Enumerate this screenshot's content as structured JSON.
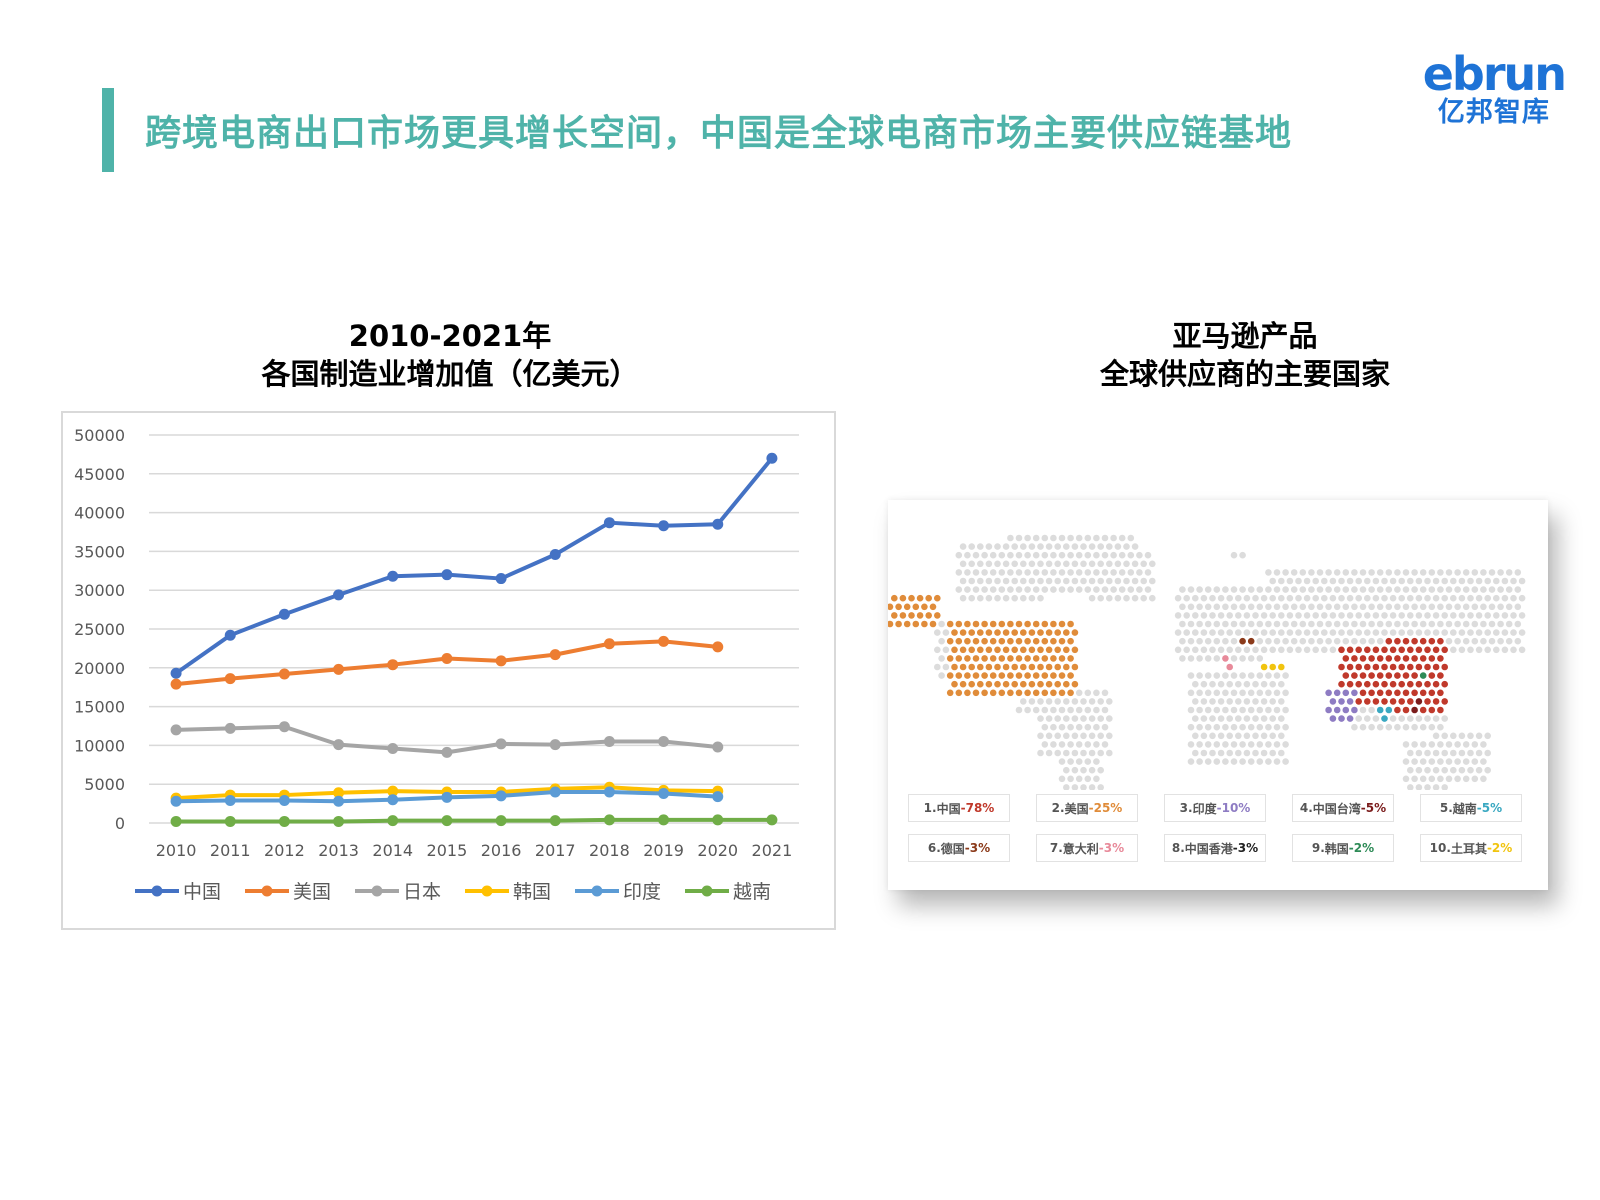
{
  "header": {
    "title": "跨境电商出口市场更具增长空间，中国是全球电商市场主要供应链基地",
    "logo_word": "ebrun",
    "logo_sub": "亿邦智库",
    "accent_color": "#4fb3a9",
    "logo_color": "#1e73d6"
  },
  "chart_section": {
    "title_line1": "2010-2021年",
    "title_line2": "各国制造业增加值（亿美元）"
  },
  "chart_data": {
    "type": "line",
    "categories": [
      "2010",
      "2011",
      "2012",
      "2013",
      "2014",
      "2015",
      "2016",
      "2017",
      "2018",
      "2019",
      "2020",
      "2021"
    ],
    "ylim": [
      0,
      50000
    ],
    "yticks": [
      0,
      5000,
      10000,
      15000,
      20000,
      25000,
      30000,
      35000,
      40000,
      45000,
      50000
    ],
    "grid": true,
    "legend_position": "bottom",
    "series": [
      {
        "name": "中国",
        "color": "#4472c4",
        "values": [
          19300,
          24200,
          26900,
          29400,
          31800,
          32000,
          31500,
          34600,
          38700,
          38300,
          38500,
          47000
        ]
      },
      {
        "name": "美国",
        "color": "#ed7d31",
        "values": [
          17900,
          18600,
          19200,
          19800,
          20400,
          21200,
          20900,
          21700,
          23100,
          23400,
          22700,
          null
        ]
      },
      {
        "name": "日本",
        "color": "#a5a5a5",
        "values": [
          12000,
          12200,
          12400,
          10100,
          9600,
          9100,
          10200,
          10100,
          10500,
          10500,
          9800,
          null
        ]
      },
      {
        "name": "韩国",
        "color": "#ffc000",
        "values": [
          3200,
          3600,
          3600,
          3900,
          4100,
          4000,
          4000,
          4400,
          4600,
          4200,
          4100,
          null
        ]
      },
      {
        "name": "印度",
        "color": "#5b9bd5",
        "values": [
          2800,
          2900,
          2900,
          2800,
          3000,
          3300,
          3500,
          4000,
          4000,
          3800,
          3400,
          null
        ]
      },
      {
        "name": "越南",
        "color": "#70ad47",
        "values": [
          200,
          200,
          200,
          200,
          300,
          300,
          300,
          300,
          400,
          400,
          400,
          400
        ]
      }
    ]
  },
  "map_section": {
    "title_line1": "亚马逊产品",
    "title_line2": "全球供应商的主要国家",
    "legend": [
      {
        "rank": "1.",
        "country": "中国",
        "pct": "-78%",
        "color": "#c0392b"
      },
      {
        "rank": "2.",
        "country": "美国",
        "pct": "-25%",
        "color": "#e08c3a"
      },
      {
        "rank": "3.",
        "country": "印度",
        "pct": "-10%",
        "color": "#8e7cc3"
      },
      {
        "rank": "4.",
        "country": "中国台湾",
        "pct": "-5%",
        "color": "#7b1c1c"
      },
      {
        "rank": "5.",
        "country": "越南",
        "pct": "-5%",
        "color": "#3aa8c1"
      },
      {
        "rank": "6.",
        "country": "德国",
        "pct": "-3%",
        "color": "#8b3a1a"
      },
      {
        "rank": "7.",
        "country": "意大利",
        "pct": "-3%",
        "color": "#e88a9a"
      },
      {
        "rank": "8.",
        "country": "中国香港",
        "pct": "-3%",
        "color": "#222222"
      },
      {
        "rank": "9.",
        "country": "韩国",
        "pct": "-2%",
        "color": "#2e8b57"
      },
      {
        "rank": "10.",
        "country": "土耳其",
        "pct": "-2%",
        "color": "#f1c40f"
      }
    ]
  }
}
